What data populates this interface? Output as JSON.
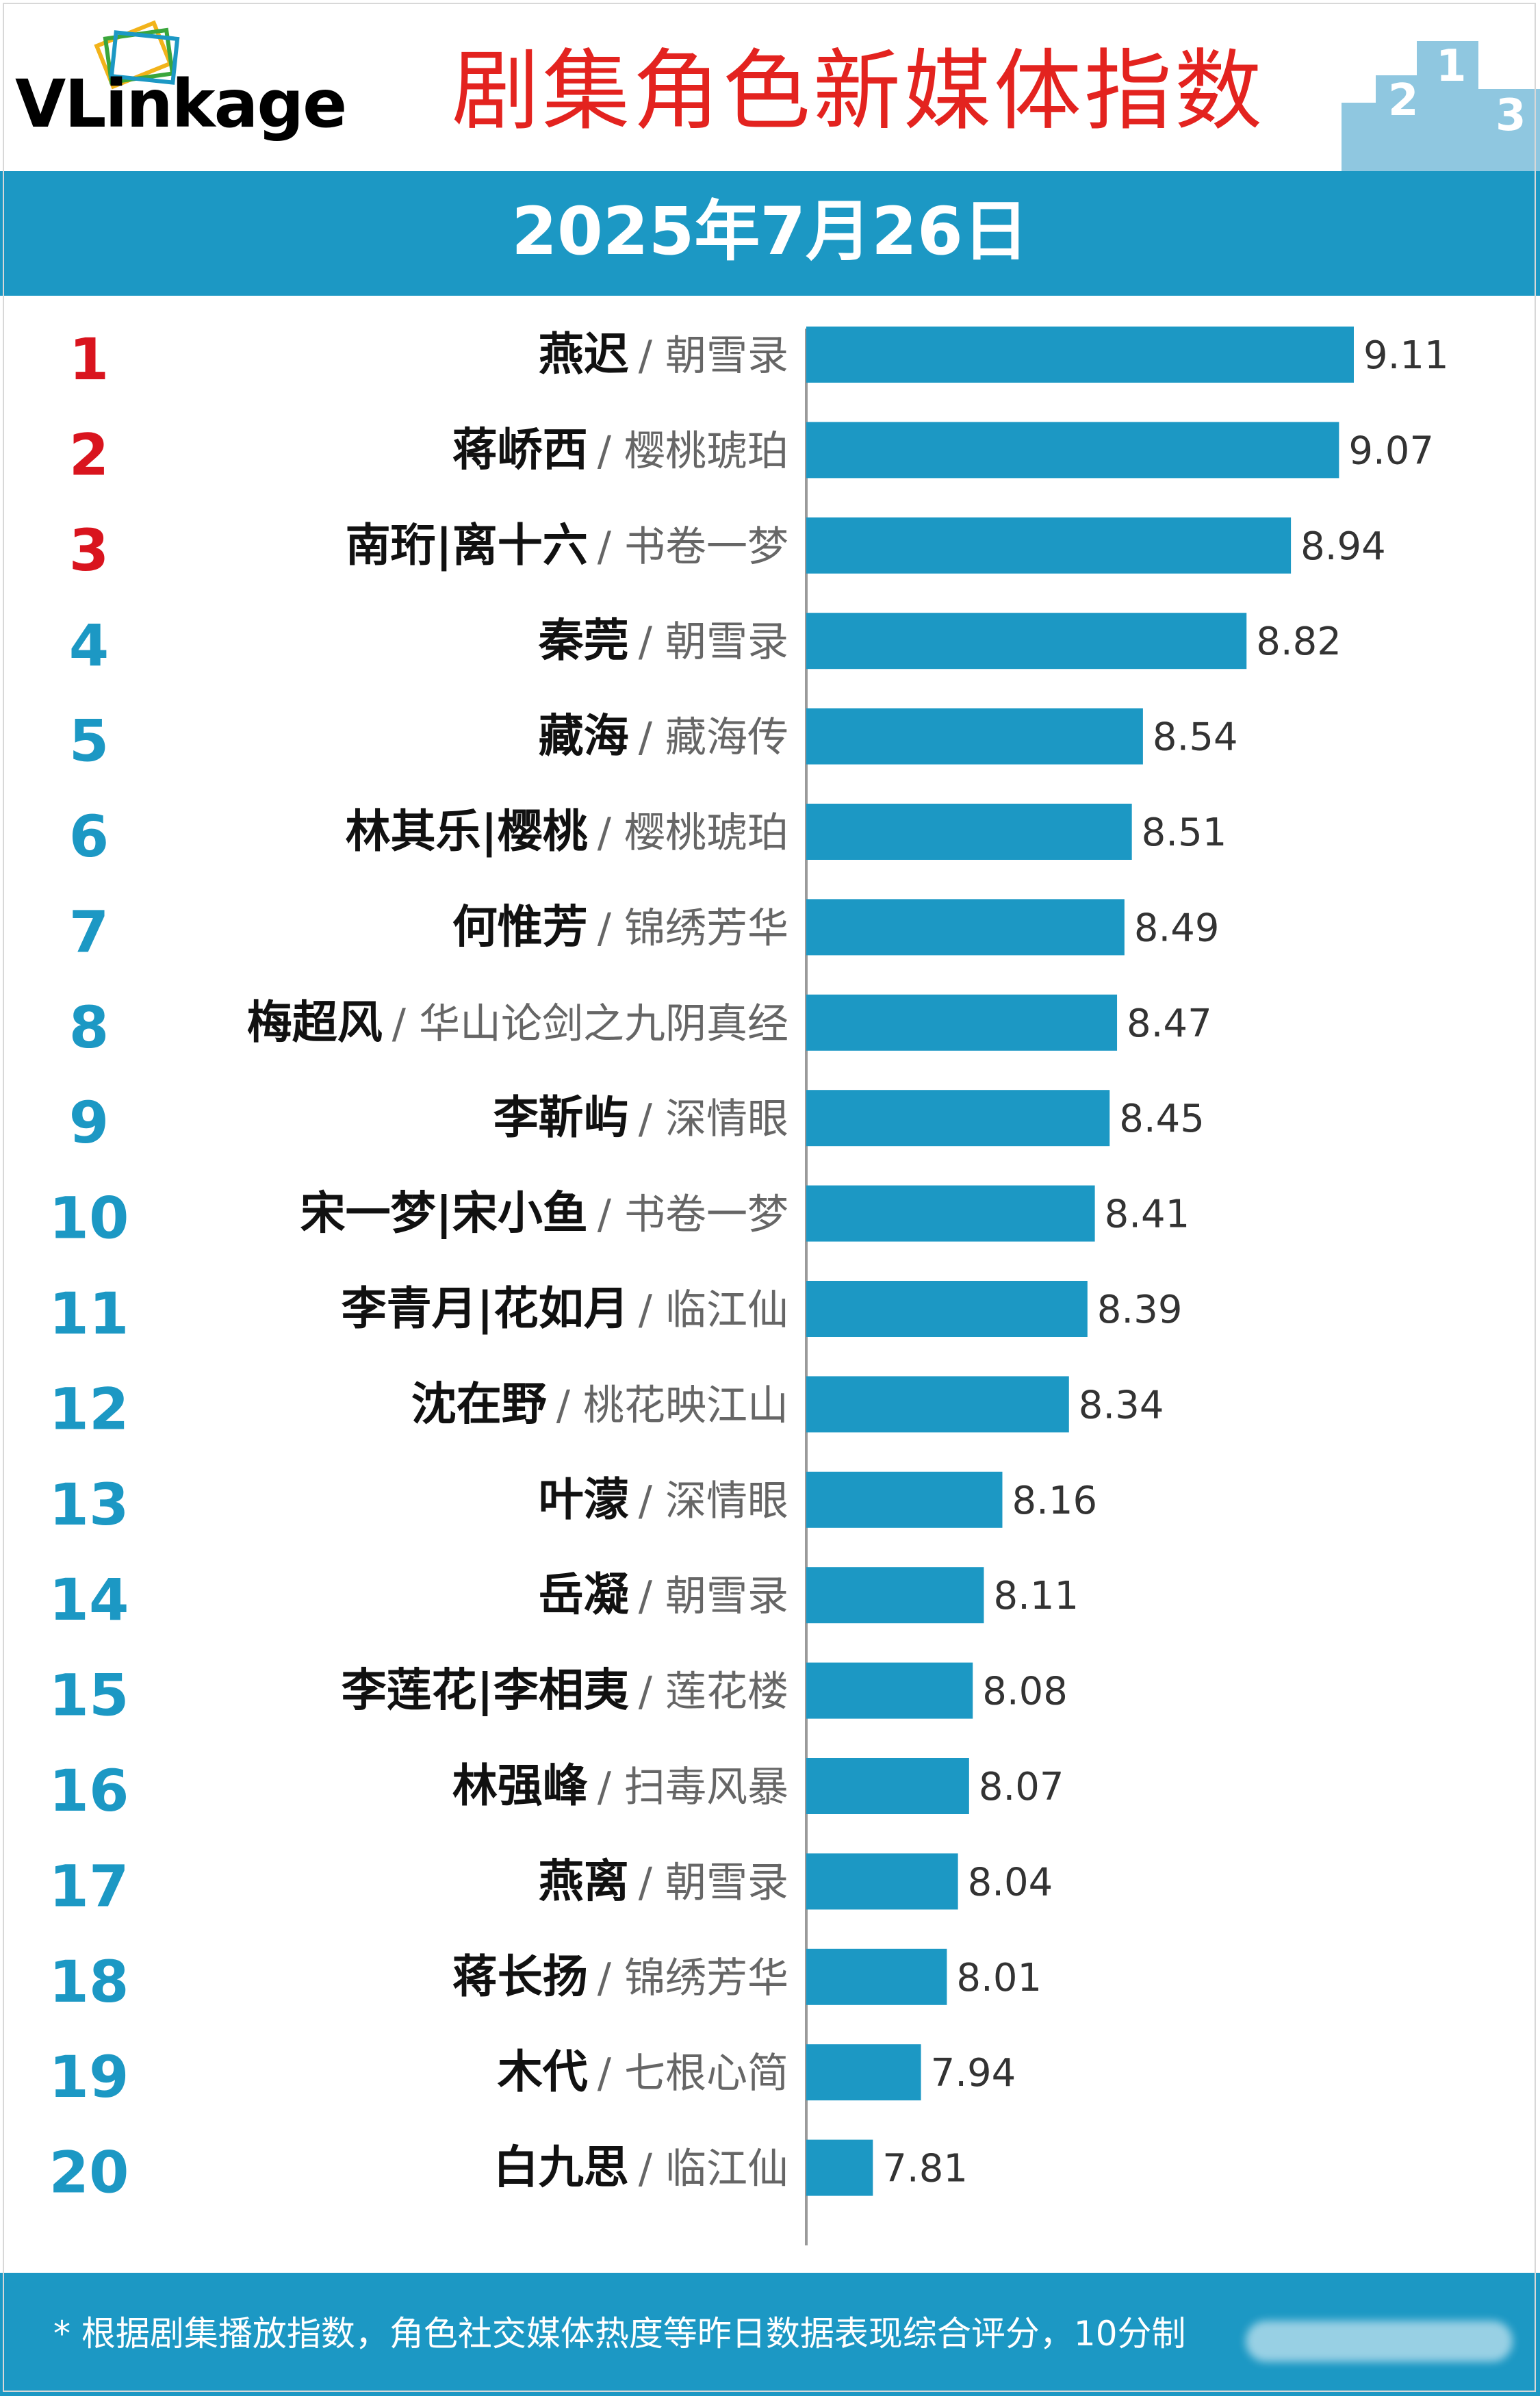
{
  "header": {
    "logo_text": "VLinkage",
    "title": "剧集角色新媒体指数",
    "date": "2025年7月26日"
  },
  "footer": {
    "note": "* 根据剧集播放指数，角色社交媒体热度等昨日数据表现综合评分，10分制"
  },
  "colors": {
    "accent": "#1c98c4",
    "bar": "#1c98c4",
    "title": "#e3231f",
    "rank_top": "#d9141e",
    "rank": "#1c98c4"
  },
  "chart_data": {
    "type": "bar",
    "orientation": "horizontal",
    "xlim": [
      6,
      9.5
    ],
    "grid": false,
    "categories": [
      {
        "rank": "1",
        "role": "燕迟",
        "drama": "朝雪录"
      },
      {
        "rank": "2",
        "role": "蒋峤西",
        "drama": "樱桃琥珀"
      },
      {
        "rank": "3",
        "role": "南珩|离十六",
        "drama": "书卷一梦"
      },
      {
        "rank": "4",
        "role": "秦莞",
        "drama": "朝雪录"
      },
      {
        "rank": "5",
        "role": "藏海",
        "drama": "藏海传"
      },
      {
        "rank": "6",
        "role": "林其乐|樱桃",
        "drama": "樱桃琥珀"
      },
      {
        "rank": "7",
        "role": "何惟芳",
        "drama": "锦绣芳华"
      },
      {
        "rank": "8",
        "role": "梅超风",
        "drama": "华山论剑之九阴真经"
      },
      {
        "rank": "9",
        "role": "李靳屿",
        "drama": "深情眼"
      },
      {
        "rank": "10",
        "role": "宋一梦|宋小鱼",
        "drama": "书卷一梦"
      },
      {
        "rank": "11",
        "role": "李青月|花如月",
        "drama": "临江仙"
      },
      {
        "rank": "12",
        "role": "沈在野",
        "drama": "桃花映江山"
      },
      {
        "rank": "13",
        "role": "叶濛",
        "drama": "深情眼"
      },
      {
        "rank": "14",
        "role": "岳凝",
        "drama": "朝雪录"
      },
      {
        "rank": "15",
        "role": "李莲花|李相夷",
        "drama": "莲花楼"
      },
      {
        "rank": "16",
        "role": "林强峰",
        "drama": "扫毒风暴"
      },
      {
        "rank": "17",
        "role": "燕离",
        "drama": "朝雪录"
      },
      {
        "rank": "18",
        "role": "蒋长扬",
        "drama": "锦绣芳华"
      },
      {
        "rank": "19",
        "role": "木代",
        "drama": "七根心简"
      },
      {
        "rank": "20",
        "role": "白九思",
        "drama": "临江仙"
      }
    ],
    "values": [
      9.11,
      9.07,
      8.94,
      8.82,
      8.54,
      8.51,
      8.49,
      8.47,
      8.45,
      8.41,
      8.39,
      8.34,
      8.16,
      8.11,
      8.08,
      8.07,
      8.04,
      8.01,
      7.94,
      7.81
    ],
    "value_labels": [
      "9.11",
      "9.07",
      "8.94",
      "8.82",
      "8.54",
      "8.51",
      "8.49",
      "8.47",
      "8.45",
      "8.41",
      "8.39",
      "8.34",
      "8.16",
      "8.11",
      "8.08",
      "8.07",
      "8.04",
      "8.01",
      "7.94",
      "7.81"
    ]
  }
}
